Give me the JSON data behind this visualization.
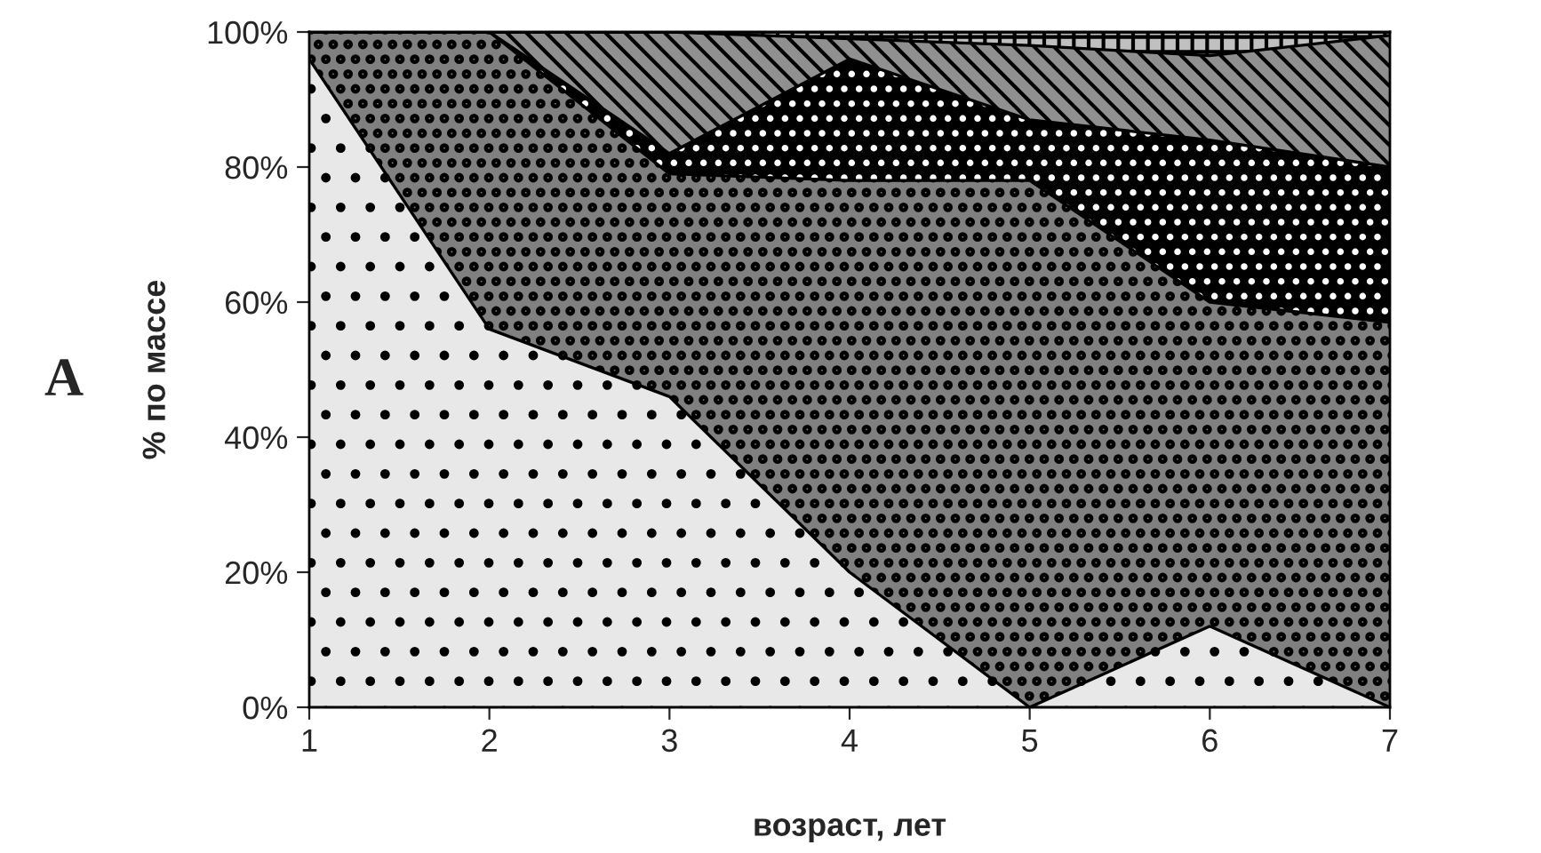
{
  "chart_data": {
    "type": "area",
    "stacked": true,
    "xlabel": "возраст, лет",
    "ylabel": "% по массе",
    "annotations": [
      "A"
    ],
    "x": [
      1,
      2,
      3,
      4,
      5,
      6,
      7
    ],
    "series": [
      {
        "color": "#e8e8e8",
        "values": [
          96,
          56,
          46,
          20,
          0,
          12,
          0
        ]
      },
      {
        "color": "#808080",
        "values": [
          4,
          44,
          33,
          58,
          78,
          48,
          57
        ]
      },
      {
        "color": "#000000",
        "values": [
          0,
          0,
          3,
          18,
          9,
          24,
          23
        ]
      },
      {
        "color": "#909090",
        "values": [
          0,
          0,
          18,
          3,
          11,
          12.5,
          19.5
        ]
      },
      {
        "color": "#c0c0c0",
        "values": [
          0,
          0,
          0,
          1,
          2,
          3.5,
          0.5
        ]
      }
    ],
    "xlim": [
      1,
      7
    ],
    "xticks": [
      1,
      2,
      3,
      4,
      5,
      6,
      7
    ],
    "ylim": [
      0,
      100
    ],
    "yticks": [
      {
        "value": 0,
        "label": "0%"
      },
      {
        "value": 20,
        "label": "20%"
      },
      {
        "value": 40,
        "label": "40%"
      },
      {
        "value": 60,
        "label": "60%"
      },
      {
        "value": 80,
        "label": "80%"
      },
      {
        "value": 100,
        "label": "100%"
      }
    ],
    "legend": false
  }
}
